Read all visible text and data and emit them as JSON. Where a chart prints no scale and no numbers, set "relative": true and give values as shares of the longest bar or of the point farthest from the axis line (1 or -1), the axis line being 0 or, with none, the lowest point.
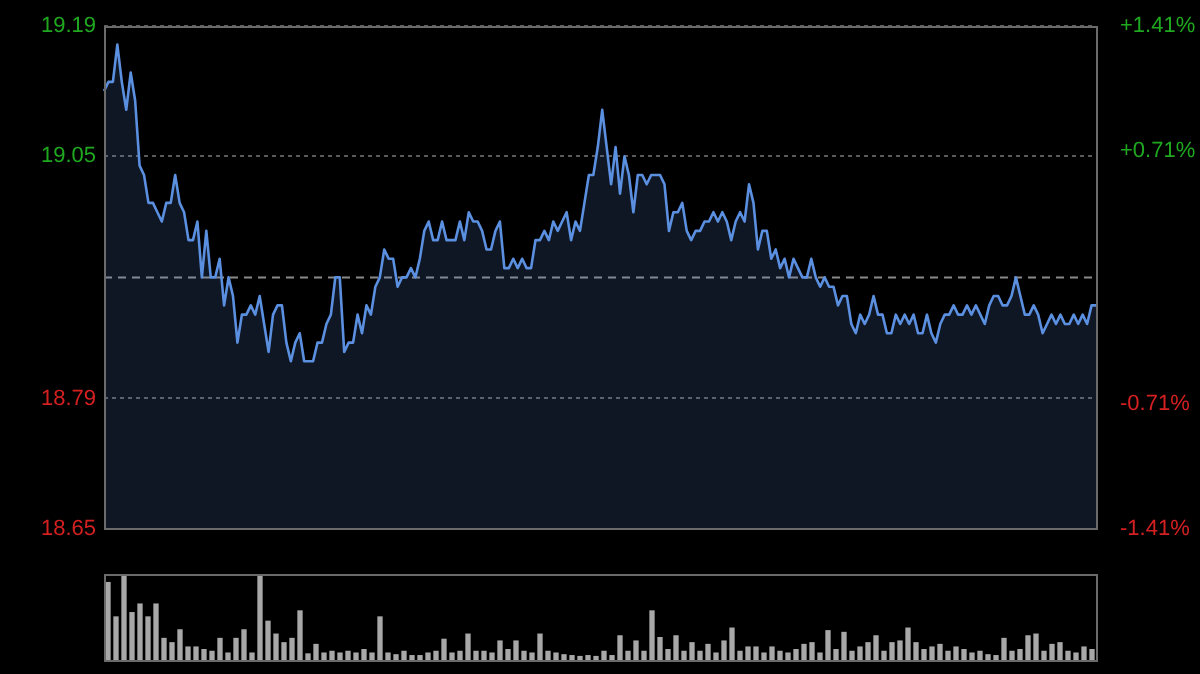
{
  "chart_data": [
    {
      "type": "area",
      "categories": [
        null,
        null,
        null,
        null,
        null,
        null,
        null,
        null,
        null,
        null,
        null,
        null,
        null,
        null,
        null,
        null,
        null,
        null,
        null,
        null,
        null,
        null,
        null,
        null,
        null,
        null,
        null,
        null,
        null,
        null,
        null,
        null,
        null,
        null,
        null,
        null,
        null,
        null,
        null,
        null,
        null,
        null,
        null,
        null,
        null,
        null,
        null,
        null,
        null,
        null,
        null,
        null,
        null,
        null,
        null,
        null,
        null,
        null,
        null,
        null,
        null,
        null,
        null,
        null,
        null,
        null,
        null,
        null,
        null,
        null,
        null,
        null,
        null,
        null,
        null,
        null,
        null,
        null,
        null,
        null,
        null,
        null,
        null,
        null,
        null,
        null,
        null,
        null,
        null,
        null,
        null,
        null,
        null,
        null,
        null,
        null,
        null,
        null,
        null,
        null,
        null,
        null,
        null,
        null,
        null,
        null,
        null,
        null,
        null,
        null,
        null,
        null,
        null,
        null,
        null,
        null,
        null,
        null,
        null,
        null,
        null,
        null,
        null,
        null,
        null,
        null,
        null,
        null,
        null,
        null,
        null,
        null,
        null,
        null,
        null,
        null,
        null,
        null,
        null,
        null,
        null,
        null,
        null,
        null,
        null,
        null,
        null,
        null,
        null,
        null,
        null,
        null,
        null,
        null,
        null,
        null,
        null,
        null,
        null,
        null,
        null,
        null,
        null,
        null,
        null,
        null,
        null,
        null,
        null,
        null,
        null,
        null,
        null,
        null,
        null,
        null,
        null,
        null,
        null,
        null,
        null,
        null,
        null,
        null,
        null,
        null,
        null,
        null,
        null,
        null,
        null,
        null,
        null,
        null,
        null,
        null,
        null,
        null,
        null,
        null,
        null,
        null,
        null,
        null,
        null,
        null,
        null,
        null,
        null,
        null,
        null,
        null,
        null,
        null,
        null,
        null,
        null,
        null,
        null,
        null,
        null,
        null,
        null,
        null
      ],
      "series": [
        {
          "color": "#5b8fe0",
          "values": [
            19.12,
            19.13,
            19.13,
            19.17,
            19.13,
            19.1,
            19.14,
            19.11,
            19.04,
            19.03,
            19.0,
            19.0,
            18.99,
            18.98,
            19.0,
            19.0,
            19.03,
            19.0,
            18.99,
            18.96,
            18.96,
            18.98,
            18.92,
            18.97,
            18.92,
            18.92,
            18.94,
            18.89,
            18.92,
            18.9,
            18.85,
            18.88,
            18.88,
            18.89,
            18.88,
            18.9,
            18.87,
            18.84,
            18.88,
            18.89,
            18.89,
            18.85,
            18.83,
            18.85,
            18.86,
            18.83,
            18.83,
            18.83,
            18.85,
            18.85,
            18.87,
            18.88,
            18.92,
            18.92,
            18.84,
            18.85,
            18.85,
            18.88,
            18.86,
            18.89,
            18.88,
            18.91,
            18.92,
            18.95,
            18.94,
            18.94,
            18.91,
            18.92,
            18.92,
            18.93,
            18.92,
            18.94,
            18.97,
            18.98,
            18.96,
            18.96,
            18.98,
            18.96,
            18.96,
            18.96,
            18.98,
            18.96,
            18.99,
            18.98,
            18.98,
            18.97,
            18.95,
            18.95,
            18.97,
            18.98,
            18.93,
            18.93,
            18.94,
            18.93,
            18.94,
            18.93,
            18.93,
            18.96,
            18.96,
            18.97,
            18.96,
            18.98,
            18.97,
            18.98,
            18.99,
            18.96,
            18.98,
            18.97,
            19.0,
            19.03,
            19.03,
            19.06,
            19.1,
            19.06,
            19.02,
            19.06,
            19.01,
            19.05,
            19.03,
            18.99,
            19.03,
            19.03,
            19.02,
            19.03,
            19.03,
            19.03,
            19.02,
            18.97,
            18.99,
            18.99,
            19.0,
            18.97,
            18.96,
            18.97,
            18.97,
            18.98,
            18.98,
            18.99,
            18.98,
            18.99,
            18.98,
            18.96,
            18.98,
            18.99,
            18.98,
            19.02,
            19.0,
            18.95,
            18.97,
            18.97,
            18.94,
            18.95,
            18.93,
            18.94,
            18.92,
            18.94,
            18.93,
            18.92,
            18.92,
            18.94,
            18.92,
            18.91,
            18.92,
            18.91,
            18.91,
            18.89,
            18.9,
            18.9,
            18.87,
            18.86,
            18.88,
            18.87,
            18.88,
            18.9,
            18.88,
            18.88,
            18.86,
            18.86,
            18.88,
            18.87,
            18.88,
            18.87,
            18.88,
            18.86,
            18.86,
            18.88,
            18.86,
            18.85,
            18.87,
            18.88,
            18.88,
            18.89,
            18.88,
            18.88,
            18.89,
            18.88,
            18.89,
            18.88,
            18.87,
            18.89,
            18.9,
            18.9,
            18.89,
            18.89,
            18.9,
            18.92,
            18.9,
            18.88,
            18.88,
            18.89,
            18.88,
            18.86,
            18.87,
            18.88,
            18.87,
            18.88,
            18.87,
            18.87,
            18.88,
            18.87,
            18.88,
            18.87,
            18.89,
            18.89
          ]
        }
      ],
      "ylim": [
        18.65,
        19.19
      ],
      "yticks": [
        18.65,
        18.79,
        19.05,
        19.19
      ],
      "y2lim": [
        -1.41,
        1.41
      ],
      "y2ticks": [
        {
          "value": -1.41,
          "label": "-1.41%"
        },
        {
          "value": -0.71,
          "label": "-0.71%"
        },
        {
          "value": 0.71,
          "label": "+0.71%"
        },
        {
          "value": 1.41,
          "label": "+1.41%"
        }
      ],
      "ref_lines": [
        {
          "axis": "y",
          "value": 18.92,
          "line_style": "dashed",
          "color": "#8a8a8a"
        }
      ],
      "grid": "y",
      "tick_labels": "y",
      "legend": false,
      "marker": "none"
    },
    {
      "type": "bar",
      "relative": true,
      "color": "#a8a8a8",
      "categories": [
        null,
        null,
        null,
        null,
        null,
        null,
        null,
        null,
        null,
        null,
        null,
        null,
        null,
        null,
        null,
        null,
        null,
        null,
        null,
        null,
        null,
        null,
        null,
        null,
        null,
        null,
        null,
        null,
        null,
        null,
        null,
        null,
        null,
        null,
        null,
        null,
        null,
        null,
        null,
        null,
        null,
        null,
        null,
        null,
        null,
        null,
        null,
        null,
        null,
        null,
        null,
        null,
        null,
        null,
        null,
        null,
        null,
        null,
        null,
        null,
        null,
        null,
        null,
        null,
        null,
        null,
        null,
        null,
        null,
        null,
        null,
        null,
        null,
        null,
        null,
        null,
        null,
        null,
        null,
        null,
        null,
        null,
        null,
        null,
        null,
        null,
        null,
        null,
        null,
        null,
        null,
        null,
        null,
        null,
        null,
        null,
        null,
        null,
        null,
        null,
        null,
        null,
        null,
        null,
        null,
        null,
        null,
        null,
        null,
        null,
        null,
        null,
        null,
        null,
        null,
        null,
        null,
        null,
        null,
        null,
        null,
        null,
        null,
        null
      ],
      "values": [
        0.9,
        0.5,
        1.0,
        0.55,
        0.65,
        0.5,
        0.65,
        0.25,
        0.2,
        0.35,
        0.15,
        0.15,
        0.12,
        0.1,
        0.25,
        0.08,
        0.25,
        0.35,
        0.08,
        0.97,
        0.45,
        0.3,
        0.2,
        0.25,
        0.57,
        0.07,
        0.18,
        0.08,
        0.1,
        0.08,
        0.1,
        0.08,
        0.12,
        0.08,
        0.5,
        0.08,
        0.06,
        0.1,
        0.05,
        0.05,
        0.08,
        0.1,
        0.24,
        0.08,
        0.1,
        0.3,
        0.1,
        0.1,
        0.08,
        0.22,
        0.12,
        0.22,
        0.1,
        0.08,
        0.3,
        0.1,
        0.08,
        0.06,
        0.05,
        0.04,
        0.05,
        0.04,
        0.1,
        0.05,
        0.28,
        0.1,
        0.22,
        0.1,
        0.57,
        0.26,
        0.12,
        0.28,
        0.1,
        0.2,
        0.1,
        0.18,
        0.08,
        0.22,
        0.37,
        0.1,
        0.15,
        0.15,
        0.08,
        0.15,
        0.1,
        0.08,
        0.12,
        0.18,
        0.2,
        0.08,
        0.34,
        0.12,
        0.32,
        0.1,
        0.15,
        0.2,
        0.28,
        0.1,
        0.2,
        0.22,
        0.37,
        0.2,
        0.12,
        0.15,
        0.18,
        0.1,
        0.15,
        0.12,
        0.08,
        0.1,
        0.06,
        0.05,
        0.25,
        0.1,
        0.12,
        0.28,
        0.3,
        0.1,
        0.18,
        0.2,
        0.1,
        0.08,
        0.15,
        0.12
      ]
    }
  ]
}
